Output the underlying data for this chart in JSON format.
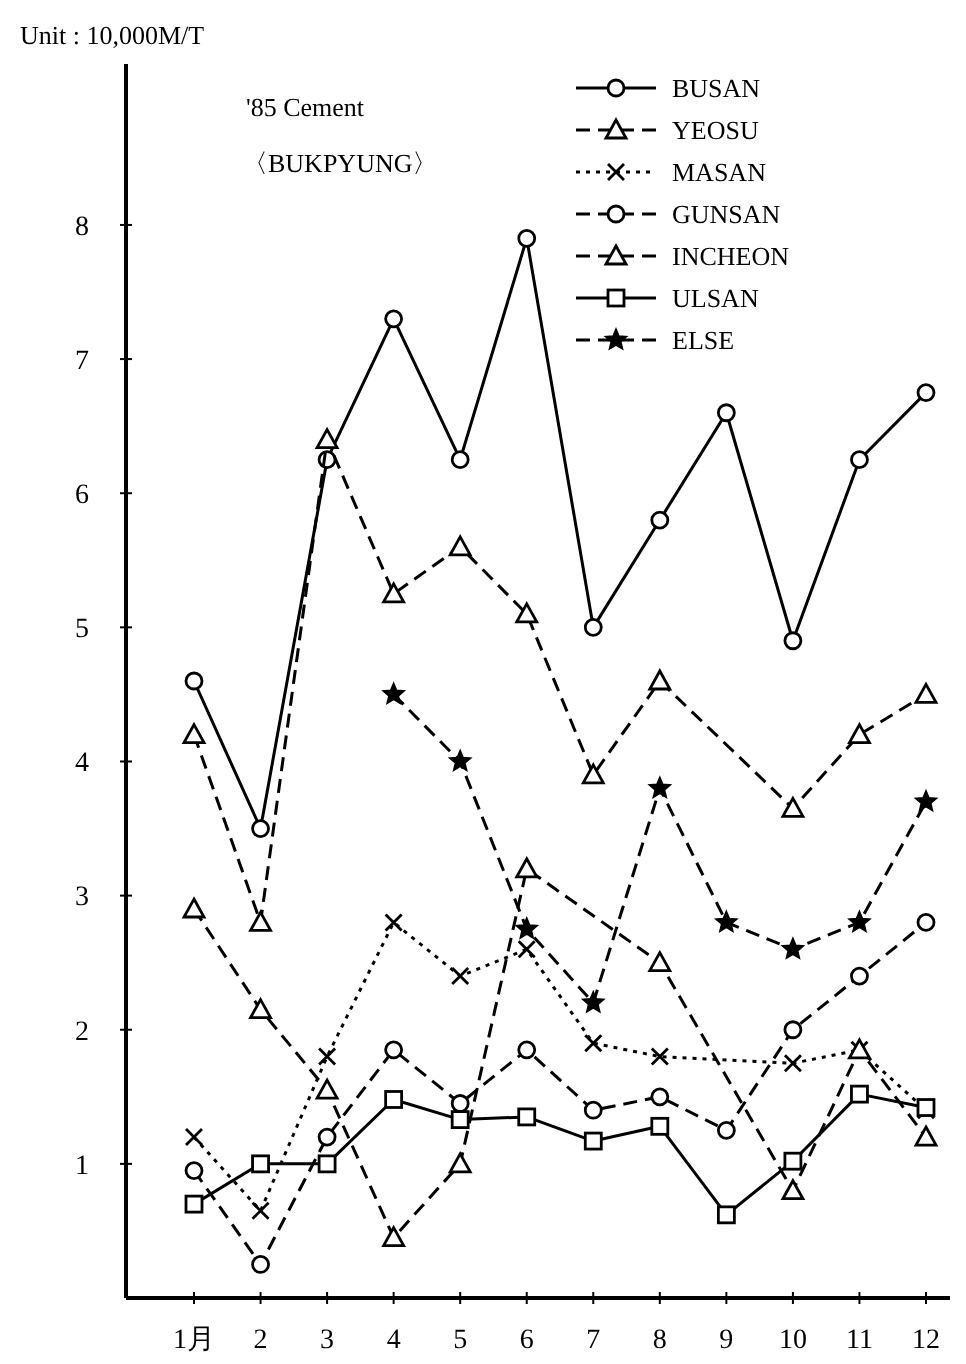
{
  "chart_data": {
    "type": "line",
    "title": "'85 Cement",
    "subtitle": "〈BUKPYUNG〉",
    "ylabel": "Unit : 10,000M/T",
    "categories": [
      "1月",
      "2",
      "3",
      "4",
      "5",
      "6",
      "7",
      "8",
      "9",
      "10",
      "11",
      "12"
    ],
    "ylim": [
      0,
      9.2
    ],
    "yticks": [
      1,
      2,
      3,
      4,
      5,
      6,
      7,
      8
    ],
    "legend": "top right",
    "grid": false,
    "series": [
      {
        "name": "BUSAN",
        "color": "#000000",
        "marker": "circle",
        "line_style": "solid",
        "values": [
          4.6,
          3.5,
          6.25,
          7.3,
          6.25,
          7.9,
          5.0,
          5.8,
          6.6,
          4.9,
          6.25,
          6.75
        ]
      },
      {
        "name": "YEOSU",
        "color": "#000000",
        "marker": "triangle",
        "line_style": "dashed",
        "values": [
          4.2,
          2.8,
          6.4,
          5.25,
          5.6,
          5.1,
          3.9,
          4.6,
          null,
          3.65,
          4.2,
          4.5
        ]
      },
      {
        "name": "MASAN",
        "color": "#000000",
        "marker": "cross",
        "line_style": "dotted",
        "values": [
          1.2,
          0.65,
          1.8,
          2.8,
          2.4,
          2.6,
          1.9,
          1.8,
          null,
          1.75,
          1.85,
          1.4
        ]
      },
      {
        "name": "GUNSAN",
        "color": "#000000",
        "marker": "circle",
        "line_style": "dashed",
        "values": [
          0.95,
          0.25,
          1.2,
          1.85,
          1.45,
          1.85,
          1.4,
          1.5,
          1.25,
          2.0,
          2.4,
          2.8
        ]
      },
      {
        "name": "INCHEON",
        "color": "#000000",
        "marker": "triangle",
        "line_style": "dashed",
        "values": [
          2.9,
          2.15,
          1.55,
          0.45,
          1.0,
          3.2,
          null,
          2.5,
          null,
          0.8,
          1.85,
          1.2
        ]
      },
      {
        "name": "ULSAN",
        "color": "#000000",
        "marker": "square",
        "line_style": "solid",
        "values": [
          0.7,
          1.0,
          1.0,
          1.48,
          1.33,
          1.35,
          1.17,
          1.28,
          0.62,
          1.02,
          1.52,
          1.42
        ]
      },
      {
        "name": "ELSE",
        "color": "#000000",
        "marker": "star",
        "line_style": "dashed",
        "values": [
          null,
          null,
          null,
          4.5,
          4.0,
          2.75,
          2.2,
          3.8,
          2.8,
          2.6,
          2.8,
          3.7
        ]
      }
    ]
  }
}
